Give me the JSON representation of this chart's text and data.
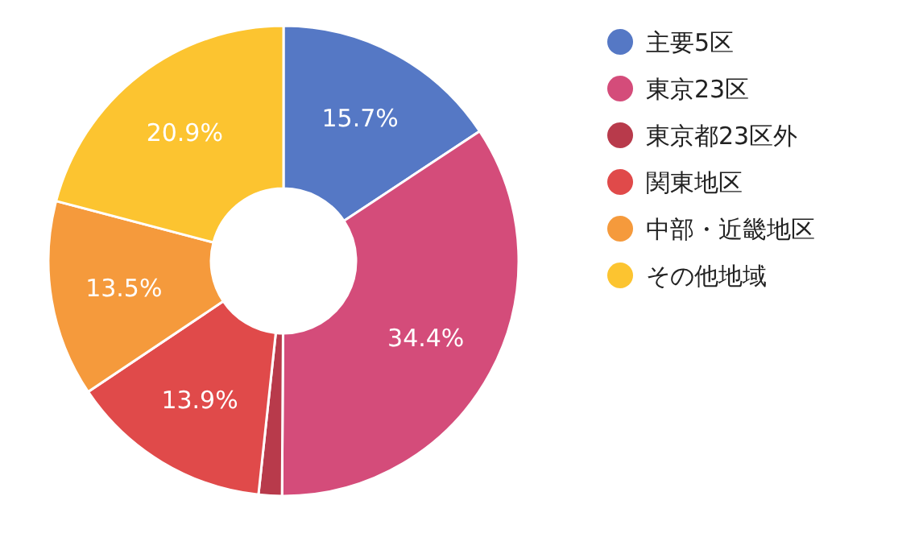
{
  "chart_data": {
    "type": "donut",
    "categories": [
      "主要5区",
      "東京23区",
      "東京都23区外",
      "関東地区",
      "中部・近畿地区",
      "その他地域"
    ],
    "values": [
      15.7,
      34.4,
      1.6,
      13.9,
      13.5,
      20.9
    ],
    "colors": [
      "#5578c5",
      "#d44c7a",
      "#b83a4b",
      "#e04a4a",
      "#f59a3c",
      "#fcc430"
    ],
    "value_labels": [
      "15.7%",
      "34.4%",
      null,
      "13.9%",
      "13.5%",
      "20.9%"
    ],
    "legend": "right"
  }
}
